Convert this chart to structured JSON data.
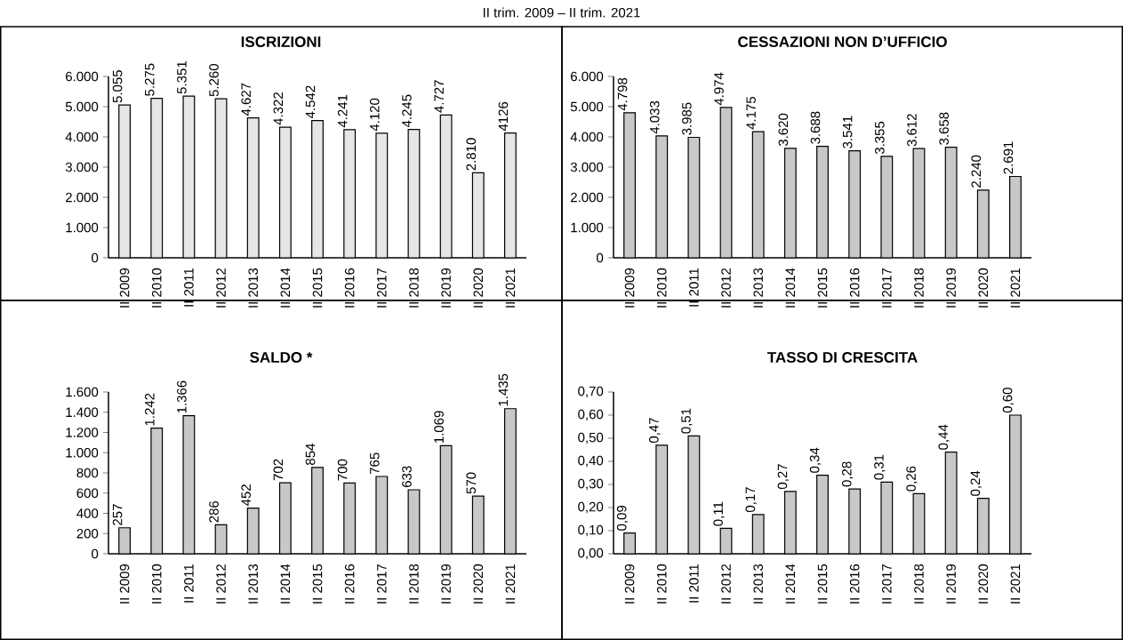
{
  "chart_data": [
    {
      "type": "bar",
      "title": "ISCRIZIONI",
      "subtitle": "II trim. 2009 – II trim. 2021",
      "categories": [
        "II 2009",
        "II 2010",
        "II 2011",
        "II 2012",
        "II 2013",
        "II 2014",
        "II 2015",
        "II 2016",
        "II 2017",
        "II 2018",
        "II 2019",
        "II 2020",
        "II 2021"
      ],
      "values": [
        5055,
        5275,
        5351,
        5260,
        4627,
        4322,
        4542,
        4241,
        4120,
        4245,
        4727,
        2810,
        4126
      ],
      "value_labels": [
        "5.055",
        "5.275",
        "5.351",
        "5.260",
        "4.627",
        "4.322",
        "4.542",
        "4.241",
        "4.120",
        "4.245",
        "4.727",
        "2.810",
        "4126"
      ],
      "color": "#e6e6e6",
      "ylim": [
        0,
        6000
      ],
      "yticks": [
        0,
        {
          "value": 1000,
          "label": "1.000"
        },
        {
          "value": 2000,
          "label": "2.000"
        },
        {
          "value": 3000,
          "label": "3.000"
        },
        {
          "value": 4000,
          "label": "4.000"
        },
        {
          "value": 5000,
          "label": "5.000"
        },
        {
          "value": 6000,
          "label": "6.000"
        }
      ]
    },
    {
      "type": "bar",
      "title": "CESSAZIONI NON D’UFFICIO",
      "categories": [
        "II 2009",
        "II 2010",
        "II 2011",
        "II 2012",
        "II 2013",
        "II 2014",
        "II 2015",
        "II 2016",
        "II 2017",
        "II 2018",
        "II 2019",
        "II 2020",
        "II 2021"
      ],
      "values": [
        4798,
        4033,
        3985,
        4974,
        4175,
        3620,
        3688,
        3541,
        3355,
        3612,
        3658,
        2240,
        2691
      ],
      "value_labels": [
        "4.798",
        "4.033",
        "3.985",
        "4.974",
        "4.175",
        "3.620",
        "3.688",
        "3.541",
        "3.355",
        "3.612",
        "3.658",
        "2.240",
        "2.691"
      ],
      "color": "#c8c8c8",
      "ylim": [
        0,
        6000
      ],
      "yticks": [
        0,
        {
          "value": 1000,
          "label": "1.000"
        },
        {
          "value": 2000,
          "label": "2.000"
        },
        {
          "value": 3000,
          "label": "3.000"
        },
        {
          "value": 4000,
          "label": "4.000"
        },
        {
          "value": 5000,
          "label": "5.000"
        },
        {
          "value": 6000,
          "label": "6.000"
        }
      ]
    },
    {
      "type": "bar",
      "title": "SALDO *",
      "categories": [
        "II 2009",
        "II 2010",
        "II 2011",
        "II 2012",
        "II 2013",
        "II 2014",
        "II 2015",
        "II 2016",
        "II 2017",
        "II 2018",
        "II 2019",
        "II 2020",
        "II 2021"
      ],
      "values": [
        257,
        1242,
        1366,
        286,
        452,
        702,
        854,
        700,
        765,
        633,
        1069,
        570,
        1435
      ],
      "value_labels": [
        "257",
        "1.242",
        "1.366",
        "286",
        "452",
        "702",
        "854",
        "700",
        "765",
        "633",
        "1.069",
        "570",
        "1.435"
      ],
      "color": "#c8c8c8",
      "ylim": [
        0,
        1600
      ],
      "yticks": [
        0,
        200,
        400,
        600,
        800,
        {
          "value": 1000,
          "label": "1.000"
        },
        {
          "value": 1200,
          "label": "1.200"
        },
        {
          "value": 1400,
          "label": "1.400"
        },
        {
          "value": 1600,
          "label": "1.600"
        }
      ]
    },
    {
      "type": "bar",
      "title": "TASSO DI CRESCITA",
      "categories": [
        "II 2009",
        "II 2010",
        "II 2011",
        "II 2012",
        "II 2013",
        "II 2014",
        "II 2015",
        "II 2016",
        "II 2017",
        "II 2018",
        "II 2019",
        "II 2020",
        "II 2021"
      ],
      "values": [
        0.09,
        0.47,
        0.51,
        0.11,
        0.17,
        0.27,
        0.34,
        0.28,
        0.31,
        0.26,
        0.44,
        0.24,
        0.6
      ],
      "value_labels": [
        "0,09",
        "0,47",
        "0,51",
        "0,11",
        "0,17",
        "0,27",
        "0,34",
        "0,28",
        "0,31",
        "0,26",
        "0,44",
        "0,24",
        "0,60"
      ],
      "color": "#c8c8c8",
      "ylim": [
        0,
        0.7
      ],
      "yticks": [
        {
          "value": 0,
          "label": "0,00"
        },
        {
          "value": 0.1,
          "label": "0,10"
        },
        {
          "value": 0.2,
          "label": "0,20"
        },
        {
          "value": 0.3,
          "label": "0,30"
        },
        {
          "value": 0.4,
          "label": "0,40"
        },
        {
          "value": 0.5,
          "label": "0,50"
        },
        {
          "value": 0.6,
          "label": "0,60"
        },
        {
          "value": 0.7,
          "label": "0,70"
        }
      ]
    }
  ]
}
